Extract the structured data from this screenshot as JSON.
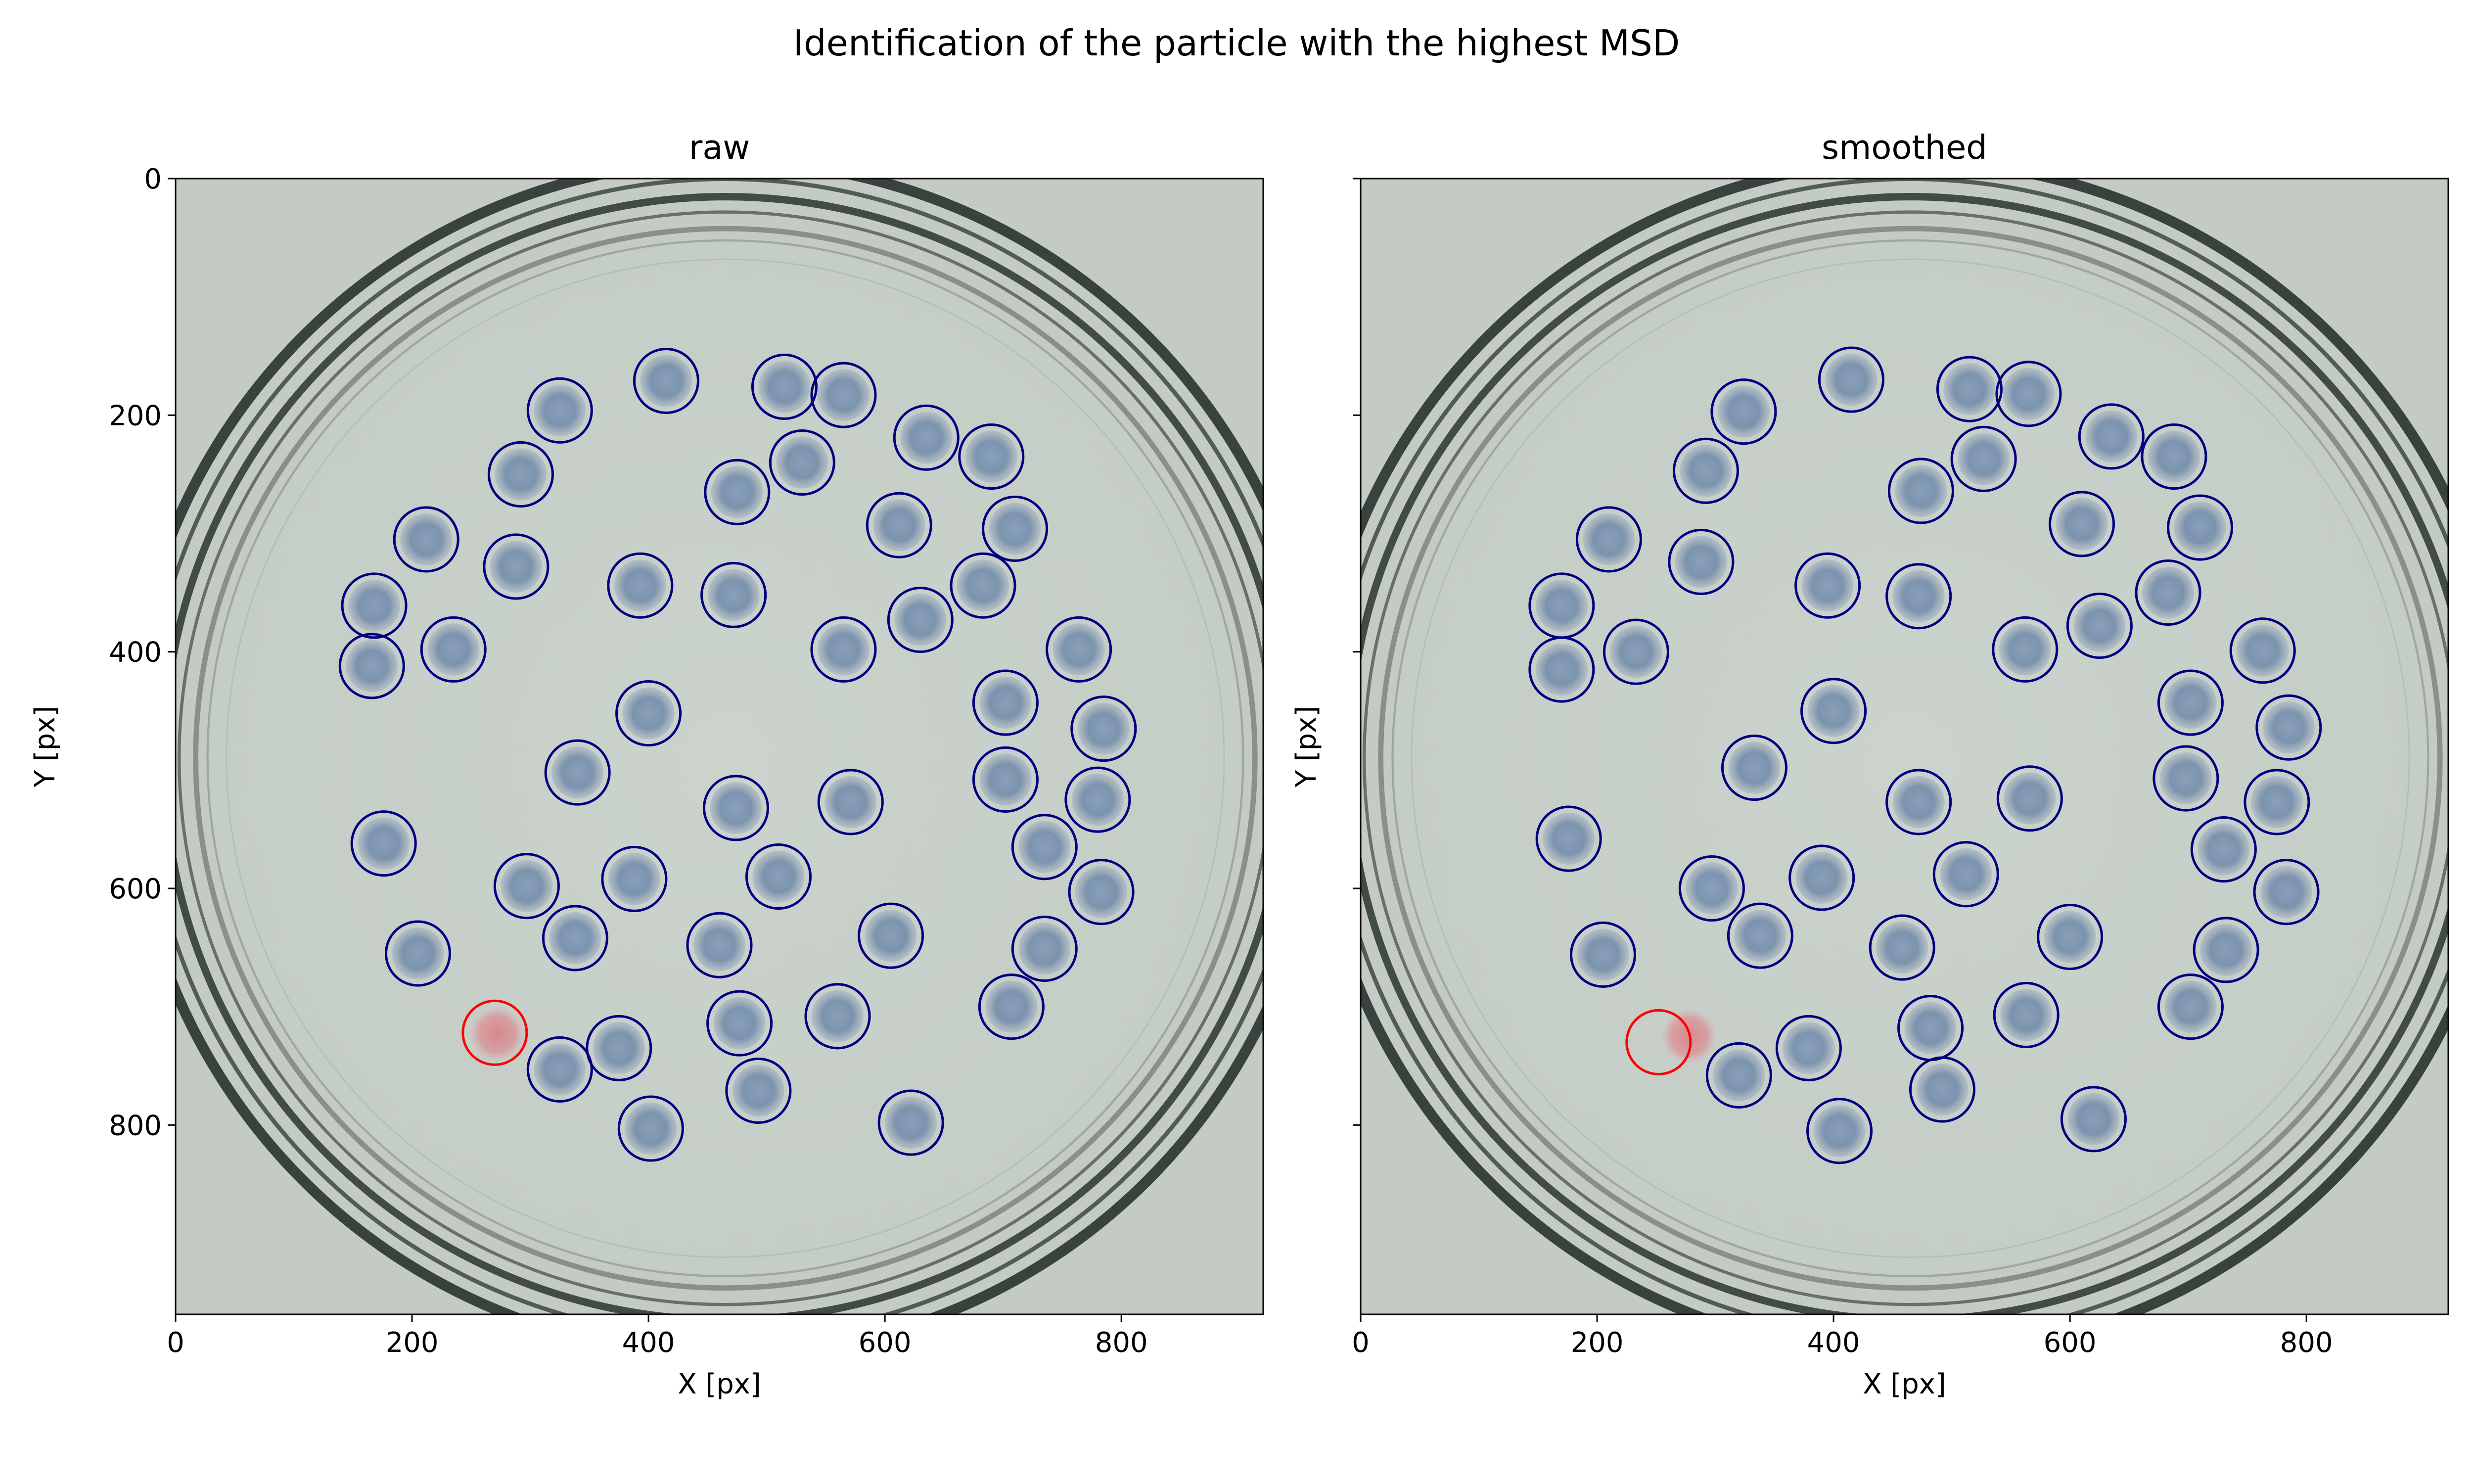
{
  "figure": {
    "suptitle": "Identification of the particle with the highest MSD"
  },
  "colors": {
    "marker": "#000080",
    "highlight": "#ff0000",
    "particle": "#7b93ad",
    "dish_background": "#c3cbc4",
    "dish_interior": "#c7cfc9"
  },
  "chart_data": [
    {
      "type": "scatter",
      "title": "raw",
      "xlabel": "X [px]",
      "ylabel": "Y [px]",
      "xlim": [
        0,
        920
      ],
      "ylim": [
        960,
        0
      ],
      "xticks": [
        0,
        200,
        400,
        600,
        800
      ],
      "yticks": [
        0,
        200,
        400,
        600,
        800
      ],
      "grid": false,
      "particles": [
        {
          "x": 415,
          "y": 171
        },
        {
          "x": 515,
          "y": 176
        },
        {
          "x": 565,
          "y": 183
        },
        {
          "x": 325,
          "y": 196
        },
        {
          "x": 635,
          "y": 219
        },
        {
          "x": 690,
          "y": 235
        },
        {
          "x": 530,
          "y": 240
        },
        {
          "x": 292,
          "y": 250
        },
        {
          "x": 475,
          "y": 265
        },
        {
          "x": 612,
          "y": 293
        },
        {
          "x": 710,
          "y": 296
        },
        {
          "x": 212,
          "y": 305
        },
        {
          "x": 288,
          "y": 328
        },
        {
          "x": 393,
          "y": 344
        },
        {
          "x": 472,
          "y": 352
        },
        {
          "x": 683,
          "y": 344
        },
        {
          "x": 168,
          "y": 361
        },
        {
          "x": 630,
          "y": 373
        },
        {
          "x": 235,
          "y": 398
        },
        {
          "x": 565,
          "y": 398
        },
        {
          "x": 764,
          "y": 398
        },
        {
          "x": 166,
          "y": 412
        },
        {
          "x": 702,
          "y": 443
        },
        {
          "x": 400,
          "y": 452
        },
        {
          "x": 785,
          "y": 465
        },
        {
          "x": 340,
          "y": 502
        },
        {
          "x": 702,
          "y": 508
        },
        {
          "x": 780,
          "y": 525
        },
        {
          "x": 474,
          "y": 532
        },
        {
          "x": 571,
          "y": 527
        },
        {
          "x": 176,
          "y": 562
        },
        {
          "x": 735,
          "y": 565
        },
        {
          "x": 297,
          "y": 598
        },
        {
          "x": 388,
          "y": 592
        },
        {
          "x": 510,
          "y": 590
        },
        {
          "x": 783,
          "y": 603
        },
        {
          "x": 338,
          "y": 642
        },
        {
          "x": 605,
          "y": 640
        },
        {
          "x": 460,
          "y": 648
        },
        {
          "x": 205,
          "y": 655
        },
        {
          "x": 735,
          "y": 651
        },
        {
          "x": 707,
          "y": 700
        },
        {
          "x": 560,
          "y": 708
        },
        {
          "x": 477,
          "y": 714
        },
        {
          "x": 375,
          "y": 735
        },
        {
          "x": 325,
          "y": 753
        },
        {
          "x": 493,
          "y": 771
        },
        {
          "x": 622,
          "y": 798
        },
        {
          "x": 402,
          "y": 803
        }
      ],
      "highlighted": {
        "x": 270,
        "y": 722,
        "blob_x": 272,
        "blob_y": 723
      }
    },
    {
      "type": "scatter",
      "title": "smoothed",
      "xlabel": "X [px]",
      "ylabel": "Y [px]",
      "xlim": [
        0,
        920
      ],
      "ylim": [
        960,
        0
      ],
      "xticks": [
        0,
        200,
        400,
        600,
        800
      ],
      "yticks": [
        0,
        200,
        400,
        600,
        800
      ],
      "grid": false,
      "particles": [
        {
          "x": 415,
          "y": 170
        },
        {
          "x": 515,
          "y": 178
        },
        {
          "x": 565,
          "y": 182
        },
        {
          "x": 324,
          "y": 197
        },
        {
          "x": 635,
          "y": 218
        },
        {
          "x": 688,
          "y": 235
        },
        {
          "x": 527,
          "y": 237
        },
        {
          "x": 292,
          "y": 247
        },
        {
          "x": 474,
          "y": 264
        },
        {
          "x": 610,
          "y": 292
        },
        {
          "x": 710,
          "y": 295
        },
        {
          "x": 210,
          "y": 305
        },
        {
          "x": 288,
          "y": 324
        },
        {
          "x": 395,
          "y": 344
        },
        {
          "x": 472,
          "y": 353
        },
        {
          "x": 683,
          "y": 350
        },
        {
          "x": 170,
          "y": 361
        },
        {
          "x": 625,
          "y": 378
        },
        {
          "x": 233,
          "y": 400
        },
        {
          "x": 562,
          "y": 398
        },
        {
          "x": 763,
          "y": 399
        },
        {
          "x": 170,
          "y": 415
        },
        {
          "x": 702,
          "y": 443
        },
        {
          "x": 400,
          "y": 450
        },
        {
          "x": 785,
          "y": 464
        },
        {
          "x": 333,
          "y": 498
        },
        {
          "x": 698,
          "y": 507
        },
        {
          "x": 775,
          "y": 527
        },
        {
          "x": 472,
          "y": 527
        },
        {
          "x": 566,
          "y": 524
        },
        {
          "x": 176,
          "y": 558
        },
        {
          "x": 730,
          "y": 567
        },
        {
          "x": 297,
          "y": 600
        },
        {
          "x": 390,
          "y": 591
        },
        {
          "x": 512,
          "y": 588
        },
        {
          "x": 783,
          "y": 603
        },
        {
          "x": 338,
          "y": 640
        },
        {
          "x": 600,
          "y": 641
        },
        {
          "x": 458,
          "y": 650
        },
        {
          "x": 205,
          "y": 656
        },
        {
          "x": 732,
          "y": 652
        },
        {
          "x": 702,
          "y": 700
        },
        {
          "x": 563,
          "y": 707
        },
        {
          "x": 482,
          "y": 718
        },
        {
          "x": 379,
          "y": 735
        },
        {
          "x": 320,
          "y": 758
        },
        {
          "x": 492,
          "y": 770
        },
        {
          "x": 620,
          "y": 795
        },
        {
          "x": 405,
          "y": 805
        }
      ],
      "highlighted": {
        "x": 252,
        "y": 730,
        "blob_x": 278,
        "blob_y": 725
      }
    }
  ]
}
